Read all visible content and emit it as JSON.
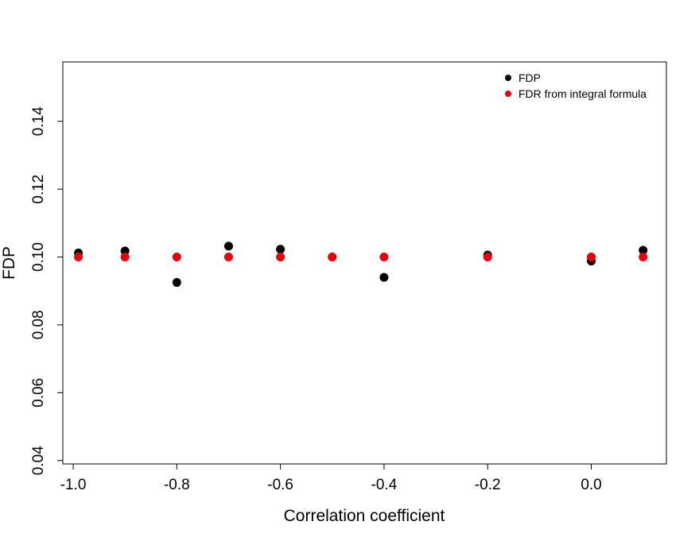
{
  "chart_data": {
    "type": "scatter",
    "title": "",
    "xlabel": "Correlation coefficient",
    "ylabel": "FDP",
    "xlim": [
      -1.02,
      0.145
    ],
    "ylim": [
      0.039,
      0.1575
    ],
    "x_ticks": [
      -1.0,
      -0.8,
      -0.6,
      -0.4,
      -0.2,
      0.0
    ],
    "x_tick_labels": [
      "-1.0",
      "-0.8",
      "-0.6",
      "-0.4",
      "-0.2",
      "0.0"
    ],
    "y_ticks": [
      0.04,
      0.06,
      0.08,
      0.1,
      0.12,
      0.14
    ],
    "y_tick_labels": [
      "0.04",
      "0.06",
      "0.08",
      "0.10",
      "0.12",
      "0.14"
    ],
    "grid": false,
    "legend_position": "top-right",
    "series": [
      {
        "name": "FDP",
        "color": "#000000",
        "x": [
          -0.99,
          -0.9,
          -0.8,
          -0.7,
          -0.6,
          -0.5,
          -0.4,
          -0.2,
          0.0,
          0.1
        ],
        "y": [
          0.1012,
          0.1018,
          0.0925,
          0.1032,
          0.1023,
          0.1,
          0.094,
          0.1006,
          0.0988,
          0.102
        ]
      },
      {
        "name": "FDR from integral formula",
        "color": "#e8000b",
        "x": [
          -0.99,
          -0.9,
          -0.8,
          -0.7,
          -0.6,
          -0.5,
          -0.4,
          -0.2,
          0.0,
          0.1
        ],
        "y": [
          0.1,
          0.1,
          0.1,
          0.1,
          0.1,
          0.1,
          0.1,
          0.1,
          0.1,
          0.1
        ]
      }
    ]
  }
}
